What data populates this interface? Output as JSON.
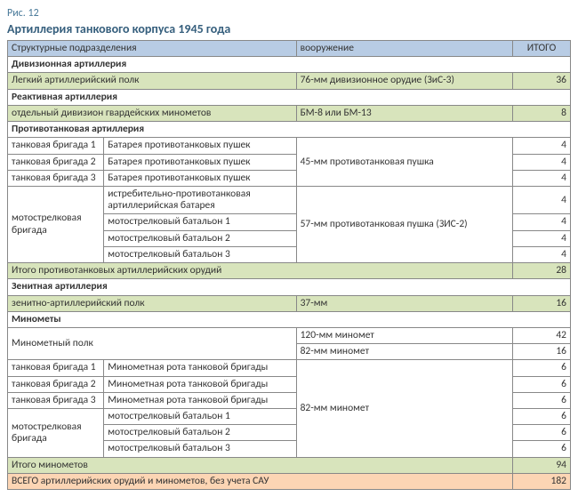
{
  "fig_label": "Рис. 12",
  "title": "Артиллерия танкового корпуса 1945 года",
  "headers": {
    "structure": "Структурные подразделения",
    "armament": "вооружение",
    "total": "ИТОГО"
  },
  "sections": {
    "divisional": {
      "name": "Дивизионная артиллерия",
      "row_label": "Легкий артиллерийский полк",
      "row_arm": "76-мм дивизионное орудие (ЗиС-3)",
      "row_total": "36"
    },
    "reactive": {
      "name": "Реактивная артиллерия",
      "row_label": "отдельный дивизион гвардейских минометов",
      "row_arm": "БМ-8 или БМ-13",
      "row_total": "8"
    },
    "antitank": {
      "name": "Противотанковая артиллерия",
      "tb1": "танковая  бригада 1",
      "tb2": "танковая  бригада 2",
      "tb3": "танковая  бригада 3",
      "battery": "Батарея противотанковых пушек",
      "arm45": "45-мм противотанковая пушка",
      "val45": "4",
      "moto_label": "мотострелковая бригада",
      "moto_r1": "истребительно-противотанковая артиллерийская батарея",
      "moto_r2": "мотострелковый батальон 1",
      "moto_r3": "мотострелковый батальон 2",
      "moto_r4": "мотострелковый батальон 3",
      "arm57": "57-мм противотанковая пушка (ЗИС-2)",
      "val57": "4",
      "subtotal_label": "Итого противотанковых артиллерийских орудий",
      "subtotal_val": "28"
    },
    "aa": {
      "name": "Зенитная артиллерия",
      "row_label": "зенитно-артиллерийский полк",
      "row_arm": "37-мм",
      "row_total": "16"
    },
    "mortars": {
      "name": "Минометы",
      "polk": "Минометный полк",
      "arm120": "120-мм миномет",
      "val120": "42",
      "arm82a": "82-мм миномет",
      "val82a": "16",
      "tb1": "танковая  бригада 1",
      "tb2": "танковая  бригада 2",
      "tb3": "танковая  бригада 3",
      "rota": "Минометная рота танковой бригады",
      "arm82b": "82-мм миномет",
      "val_rota": "6",
      "moto_label": "мотострелковая бригада",
      "moto_r1": "мотострелковый батальон 1",
      "moto_r2": "мотострелковый батальон 2",
      "moto_r3": "мотострелковый батальон 3",
      "val_moto": "6",
      "subtotal_label": "Итого минометов",
      "subtotal_val": "94"
    },
    "grand": {
      "label": "ВСЕГО артиллерийских орудий и минометов, без учета САУ",
      "val": "182"
    }
  }
}
